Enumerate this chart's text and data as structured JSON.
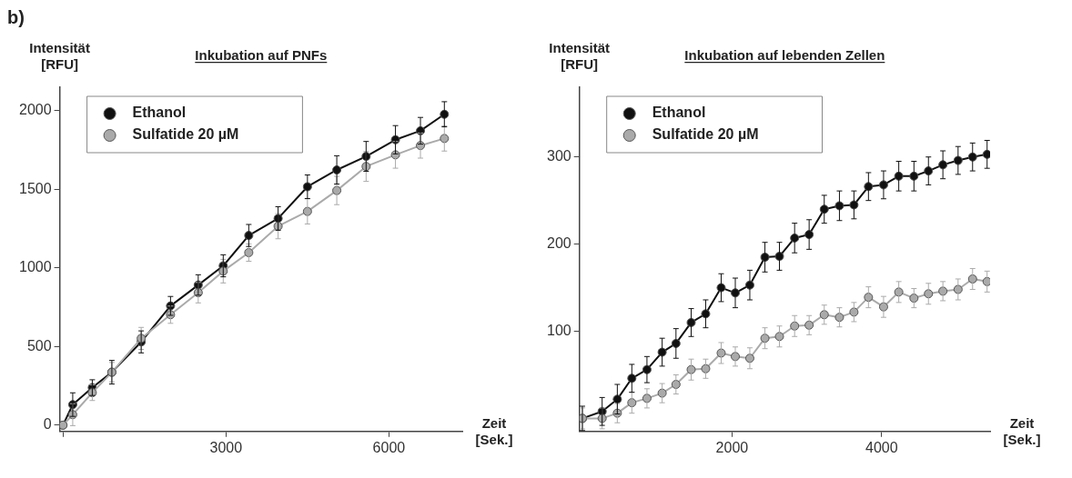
{
  "chart_data": [
    {
      "type": "line",
      "title": "Inkubation auf PNFs",
      "xlabel": "Zeit [Sek.]",
      "ylabel": "Intensität [RFU]",
      "annotations": [
        "b)"
      ],
      "xlim": [
        -60,
        7350
      ],
      "ylim": [
        -40,
        2150
      ],
      "xticks": [
        {
          "value": 0,
          "label": null
        },
        3000,
        6000
      ],
      "yticks": [
        0,
        500,
        1000,
        1500,
        2000
      ],
      "grid": false,
      "legend": "top left",
      "marker": "circle",
      "line_style": "solid",
      "x": [
        0,
        180,
        540,
        900,
        1440,
        1980,
        2490,
        2950,
        3420,
        3960,
        4500,
        5040,
        5580,
        6120,
        6580,
        7020
      ],
      "series": [
        {
          "name": "Ethanol",
          "color": "#111111",
          "values": [
            0,
            131,
            239,
            337,
            530,
            759,
            892,
            1014,
            1207,
            1315,
            1517,
            1624,
            1710,
            1816,
            1873,
            1978
          ],
          "errors": [
            null,
            75,
            50,
            75,
            70,
            60,
            65,
            70,
            70,
            75,
            75,
            90,
            95,
            90,
            85,
            80
          ]
        },
        {
          "name": "Sulfatide 20 µM",
          "color": "#aaaaaa",
          "values": [
            0,
            67,
            207,
            337,
            552,
            703,
            843,
            980,
            1098,
            1266,
            1360,
            1493,
            1646,
            1720,
            1779,
            1824
          ],
          "errors": [
            null,
            70,
            50,
            62,
            70,
            55,
            65,
            75,
            55,
            80,
            80,
            90,
            95,
            85,
            80,
            80
          ]
        }
      ]
    },
    {
      "type": "line",
      "title": "Inkubation auf lebenden Zellen",
      "xlabel": "Zeit [Sek.]",
      "ylabel": "Intensität [RFU]",
      "xlim": [
        -40,
        5450
      ],
      "ylim": [
        -15,
        380
      ],
      "xticks": [
        2000,
        4000
      ],
      "yticks": [
        100,
        200,
        300
      ],
      "grid": false,
      "legend": "top left",
      "marker": "circle",
      "line_style": "solid",
      "x": [
        0,
        264,
        467,
        661,
        863,
        1066,
        1251,
        1454,
        1648,
        1855,
        2044,
        2238,
        2440,
        2634,
        2837,
        3031,
        3233,
        3436,
        3630,
        3824,
        4026,
        4229,
        4432,
        4626,
        4819,
        5022,
        5216,
        5410
      ],
      "series": [
        {
          "name": "Ethanol",
          "color": "#111111",
          "values": [
            0,
            8,
            22,
            46,
            56,
            76,
            86,
            110,
            120,
            150,
            144,
            153,
            185,
            186,
            207,
            211,
            240,
            244,
            245,
            266,
            268,
            278,
            278,
            284,
            291,
            296,
            300,
            303
          ],
          "errors": [
            14,
            16,
            17,
            16,
            15,
            16,
            17,
            16,
            16,
            16,
            17,
            17,
            17,
            16,
            17,
            17,
            16,
            17,
            16,
            16,
            16,
            17,
            17,
            16,
            16,
            16,
            16,
            16
          ]
        },
        {
          "name": "Sulfatide 20 µM",
          "color": "#aaaaaa",
          "values": [
            0,
            0,
            6,
            18,
            23,
            29,
            39,
            56,
            57,
            75,
            71,
            69,
            92,
            94,
            106,
            107,
            119,
            116,
            122,
            139,
            128,
            145,
            138,
            143,
            146,
            148,
            160,
            157
          ],
          "errors": [
            12,
            12,
            11,
            12,
            11,
            11,
            11,
            12,
            11,
            12,
            11,
            12,
            12,
            12,
            12,
            11,
            11,
            11,
            11,
            12,
            12,
            12,
            11,
            12,
            11,
            12,
            12,
            12
          ]
        }
      ]
    }
  ]
}
